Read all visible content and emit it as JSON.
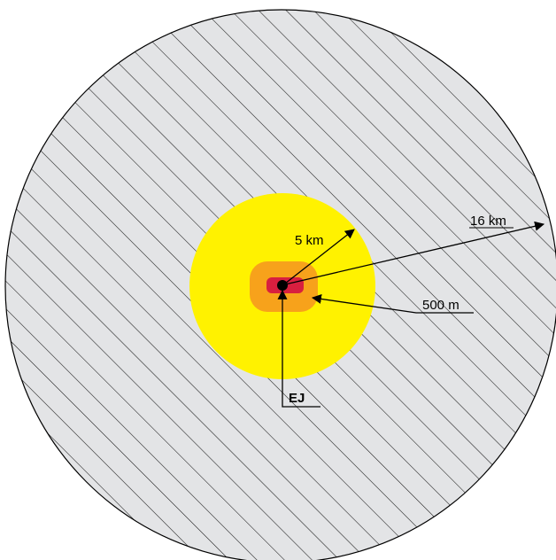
{
  "labels": {
    "radius_16km": "16 km",
    "radius_5km": "5 km",
    "radius_500m": "500 m",
    "center": "EJ"
  },
  "colors": {
    "outer_fill": "#e3e4e6",
    "hatch": "#1a1a1a",
    "zone_5km": "#fff200",
    "zone_500m": "#f7a21b",
    "core": "#d81f3f",
    "center_dot": "#000000",
    "line": "#000000"
  }
}
